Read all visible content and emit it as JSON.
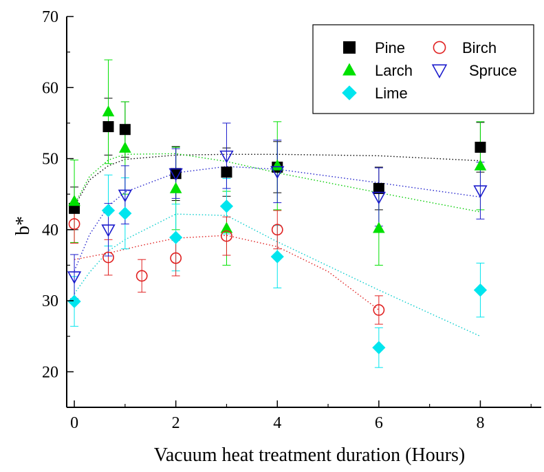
{
  "chart_data": {
    "type": "scatter",
    "title": "",
    "xlabel": "Vacuum heat treatment duration (Hours)",
    "ylabel": "b*",
    "xlim": [
      -0.15,
      9.2
    ],
    "ylim": [
      15,
      70
    ],
    "x_ticks": [
      0,
      2,
      4,
      6,
      8
    ],
    "x_tick_labels": [
      "0",
      "2",
      "4",
      "6",
      "8"
    ],
    "y_ticks": [
      20,
      30,
      40,
      50,
      60,
      70
    ],
    "y_tick_labels": [
      "20",
      "30",
      "40",
      "50",
      "60",
      "70"
    ],
    "grid": false,
    "legend_position": "top-right",
    "series": [
      {
        "name": "Pine",
        "marker": "square",
        "color": "#000000",
        "fit_color": "#000000",
        "points": [
          {
            "x": 0,
            "y": 43.0,
            "err": 3.0
          },
          {
            "x": 0.67,
            "y": 54.5,
            "err": 4.0
          },
          {
            "x": 1,
            "y": 54.1,
            "err": 3.9
          },
          {
            "x": 2,
            "y": 47.9,
            "err": 3.8
          },
          {
            "x": 3,
            "y": 48.1,
            "err": 3.4
          },
          {
            "x": 4,
            "y": 48.8,
            "err": 3.6
          },
          {
            "x": 6,
            "y": 45.8,
            "err": 3.0
          },
          {
            "x": 8,
            "y": 51.6,
            "err": 3.5
          }
        ],
        "fit": [
          [
            0,
            43.3
          ],
          [
            0.3,
            47.0
          ],
          [
            0.67,
            49.0
          ],
          [
            1,
            49.9
          ],
          [
            2,
            50.5
          ],
          [
            3,
            50.6
          ],
          [
            4,
            50.6
          ],
          [
            6,
            50.4
          ],
          [
            8,
            49.7
          ]
        ]
      },
      {
        "name": "Larch",
        "marker": "triangle-up",
        "color": "#00e000",
        "fit_color": "#00cc00",
        "points": [
          {
            "x": 0,
            "y": 44.0,
            "err": 5.8
          },
          {
            "x": 0.67,
            "y": 56.6,
            "err": 7.3
          },
          {
            "x": 1,
            "y": 51.5,
            "err": 6.5
          },
          {
            "x": 2,
            "y": 45.8,
            "err": 5.8
          },
          {
            "x": 3,
            "y": 40.2,
            "err": 5.2
          },
          {
            "x": 4,
            "y": 49.0,
            "err": 6.2
          },
          {
            "x": 6,
            "y": 40.2,
            "err": 5.2
          },
          {
            "x": 8,
            "y": 49.0,
            "err": 6.2
          }
        ],
        "fit": [
          [
            0,
            43.5
          ],
          [
            0.3,
            47.5
          ],
          [
            0.67,
            49.8
          ],
          [
            1,
            50.6
          ],
          [
            2,
            50.7
          ],
          [
            3,
            49.6
          ],
          [
            4,
            48.0
          ],
          [
            6,
            45.2
          ],
          [
            8,
            42.5
          ]
        ]
      },
      {
        "name": "Lime",
        "marker": "diamond",
        "color": "#00e5ee",
        "fit_color": "#00cccc",
        "points": [
          {
            "x": 0,
            "y": 29.9,
            "err": 3.5
          },
          {
            "x": 0.67,
            "y": 42.7,
            "err": 5.0
          },
          {
            "x": 1,
            "y": 42.3,
            "err": 5.0
          },
          {
            "x": 2,
            "y": 38.9,
            "err": 4.7
          },
          {
            "x": 3,
            "y": 43.3,
            "err": 3.9
          },
          {
            "x": 4,
            "y": 36.2,
            "err": 4.4
          },
          {
            "x": 6,
            "y": 23.4,
            "err": 2.8
          },
          {
            "x": 8,
            "y": 31.5,
            "err": 3.8
          }
        ],
        "fit": [
          [
            0,
            31.0
          ],
          [
            0.3,
            34.0
          ],
          [
            0.67,
            37.0
          ],
          [
            1,
            38.6
          ],
          [
            2,
            42.2
          ],
          [
            3,
            42.0
          ],
          [
            4,
            38.3
          ],
          [
            6,
            31.5
          ],
          [
            8,
            25.0
          ]
        ]
      },
      {
        "name": "Birch",
        "marker": "circle-open",
        "color": "#e02020",
        "fit_color": "#e02020",
        "points": [
          {
            "x": 0,
            "y": 40.8,
            "err": 2.7
          },
          {
            "x": 0.67,
            "y": 36.1,
            "err": 2.5
          },
          {
            "x": 1.33,
            "y": 33.5,
            "err": 2.3
          },
          {
            "x": 2,
            "y": 36.0,
            "err": 2.5
          },
          {
            "x": 3,
            "y": 39.1,
            "err": 2.7
          },
          {
            "x": 4,
            "y": 40.0,
            "err": 2.7
          },
          {
            "x": 6,
            "y": 28.7,
            "err": 2.0
          }
        ],
        "fit": [
          [
            0,
            35.8
          ],
          [
            0.67,
            36.7
          ],
          [
            1.33,
            37.8
          ],
          [
            2,
            38.8
          ],
          [
            3,
            39.2
          ],
          [
            4,
            37.6
          ],
          [
            5,
            34.1
          ],
          [
            6,
            28.7
          ]
        ]
      },
      {
        "name": "Spruce",
        "marker": "triangle-down-open",
        "color": "#1a1acc",
        "fit_color": "#2020cc",
        "points": [
          {
            "x": 0,
            "y": 33.4,
            "err": 3.1
          },
          {
            "x": 0.67,
            "y": 40.0,
            "err": 3.7
          },
          {
            "x": 1,
            "y": 44.9,
            "err": 4.1
          },
          {
            "x": 2,
            "y": 47.9,
            "err": 3.5
          },
          {
            "x": 3,
            "y": 50.4,
            "err": 4.6
          },
          {
            "x": 4,
            "y": 48.2,
            "err": 4.4
          },
          {
            "x": 6,
            "y": 44.6,
            "err": 4.1
          },
          {
            "x": 8,
            "y": 45.5,
            "err": 4.0
          }
        ],
        "fit": [
          [
            0,
            34.2
          ],
          [
            0.3,
            39.3
          ],
          [
            0.67,
            43.3
          ],
          [
            1,
            45.3
          ],
          [
            2,
            48.0
          ],
          [
            3,
            48.9
          ],
          [
            4,
            48.5
          ],
          [
            6,
            46.6
          ],
          [
            8,
            44.6
          ]
        ]
      }
    ],
    "legend_order": [
      "Pine",
      "Birch",
      "Larch",
      "Spruce",
      "Lime"
    ]
  }
}
